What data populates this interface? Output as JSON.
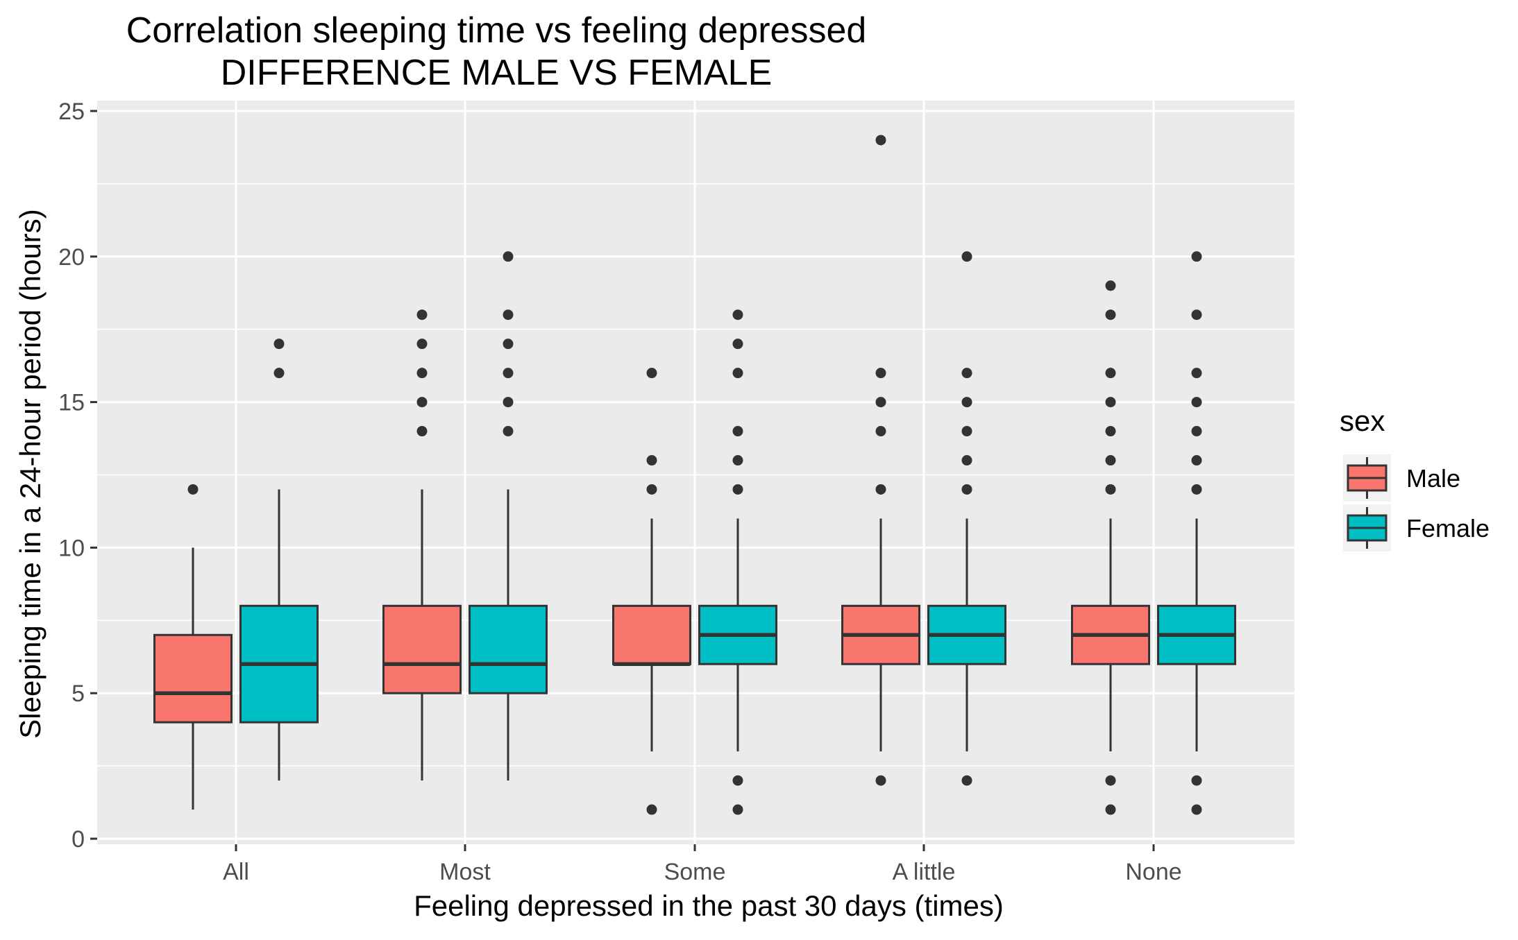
{
  "chart_data": {
    "type": "boxplot",
    "title": "Correlation sleeping time vs feeling depressed",
    "subtitle": "DIFFERENCE MALE VS FEMALE",
    "xlabel": "Feeling depressed in the past 30 days (times)",
    "ylabel": "Sleeping time in a 24-hour period (hours)",
    "ylim": [
      0,
      25
    ],
    "y_ticks": [
      "0",
      "5",
      "10",
      "15",
      "20",
      "25"
    ],
    "categories": [
      "All",
      "Most",
      "Some",
      "A little",
      "None"
    ],
    "grid": true,
    "legend_position": "right",
    "legend": {
      "title": "sex",
      "entries": [
        "Male",
        "Female"
      ]
    },
    "colors": {
      "Male": "#F8766D",
      "Female": "#00BFC4",
      "panel_background": "#EBEBEB",
      "grid": "#FFFFFF",
      "box_outline": "#333333",
      "outlier": "#333333"
    },
    "series": [
      {
        "name": "Male",
        "boxes": [
          {
            "category": "All",
            "whisker_low": 1,
            "q1": 4,
            "median": 5,
            "q3": 7,
            "whisker_high": 10,
            "outliers": [
              12
            ]
          },
          {
            "category": "Most",
            "whisker_low": 2,
            "q1": 5,
            "median": 6,
            "q3": 8,
            "whisker_high": 12,
            "outliers": [
              14,
              15,
              16,
              17,
              18
            ]
          },
          {
            "category": "Some",
            "whisker_low": 3,
            "q1": 6,
            "median": 6,
            "q3": 8,
            "whisker_high": 11,
            "outliers": [
              1,
              12,
              13,
              16
            ]
          },
          {
            "category": "A little",
            "whisker_low": 3,
            "q1": 6,
            "median": 7,
            "q3": 8,
            "whisker_high": 11,
            "outliers": [
              2,
              12,
              14,
              15,
              16,
              24
            ]
          },
          {
            "category": "None",
            "whisker_low": 3,
            "q1": 6,
            "median": 7,
            "q3": 8,
            "whisker_high": 11,
            "outliers": [
              1,
              2,
              12,
              13,
              14,
              15,
              16,
              18,
              19
            ]
          }
        ]
      },
      {
        "name": "Female",
        "boxes": [
          {
            "category": "All",
            "whisker_low": 2,
            "q1": 4,
            "median": 6,
            "q3": 8,
            "whisker_high": 12,
            "outliers": [
              16,
              17
            ]
          },
          {
            "category": "Most",
            "whisker_low": 2,
            "q1": 5,
            "median": 6,
            "q3": 8,
            "whisker_high": 12,
            "outliers": [
              14,
              15,
              16,
              17,
              18,
              20
            ]
          },
          {
            "category": "Some",
            "whisker_low": 3,
            "q1": 6,
            "median": 7,
            "q3": 8,
            "whisker_high": 11,
            "outliers": [
              1,
              2,
              12,
              13,
              14,
              16,
              17,
              18
            ]
          },
          {
            "category": "A little",
            "whisker_low": 3,
            "q1": 6,
            "median": 7,
            "q3": 8,
            "whisker_high": 11,
            "outliers": [
              2,
              12,
              13,
              14,
              15,
              16,
              20
            ]
          },
          {
            "category": "None",
            "whisker_low": 3,
            "q1": 6,
            "median": 7,
            "q3": 8,
            "whisker_high": 11,
            "outliers": [
              1,
              2,
              12,
              13,
              14,
              15,
              16,
              18,
              20
            ]
          }
        ]
      }
    ]
  }
}
